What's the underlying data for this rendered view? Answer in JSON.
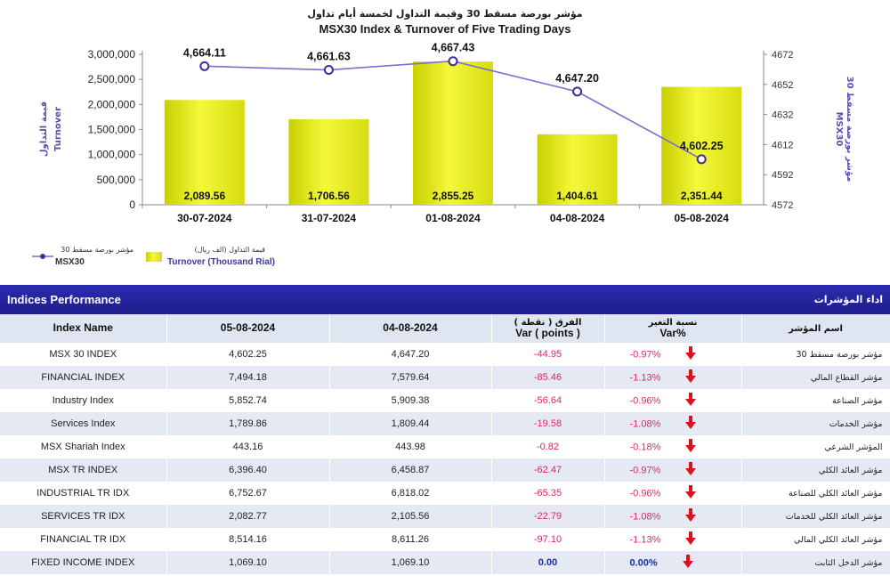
{
  "chart_data": {
    "type": "bar",
    "title_ar": "مؤشر بورصة مسقط 30 وقيمة التداول لخمسة أيام تداول",
    "title": "MSX30 Index & Turnover of Five Trading Days",
    "categories": [
      "30-07-2024",
      "31-07-2024",
      "01-08-2024",
      "04-08-2024",
      "05-08-2024"
    ],
    "series": [
      {
        "name": "Turnover (Thousand Rial)",
        "name_ar": "قيمة التداول (الف ريال)",
        "type": "bar",
        "axis": "left",
        "values": [
          2089.56,
          1706.56,
          2855.25,
          1404.61,
          2351.44
        ],
        "labels": [
          "2,089.56",
          "1,706.56",
          "2,855.25",
          "1,404.61",
          "2,351.44"
        ]
      },
      {
        "name": "MSX30",
        "name_ar": "مؤشر بورصة مسقط 30",
        "type": "line",
        "axis": "right",
        "values": [
          4664.11,
          4661.63,
          4667.43,
          4647.2,
          4602.25
        ],
        "labels": [
          "4,664.11",
          "4,661.63",
          "4,667.43",
          "4,647.20",
          "4,602.25"
        ]
      }
    ],
    "y_left": {
      "label": "Turnover",
      "label_ar": "قيمة التداول",
      "range": [
        0,
        3000000
      ],
      "ticks": [
        0,
        500000,
        1000000,
        1500000,
        2000000,
        2500000,
        3000000
      ],
      "tick_labels": [
        "0",
        "500,000",
        "1,000,000",
        "1,500,000",
        "2,000,000",
        "2,500,000",
        "3,000,000"
      ]
    },
    "y_right": {
      "label": "MSX30",
      "label_ar": "مؤشر بورصة مسقط 30",
      "range": [
        4572,
        4672
      ],
      "ticks": [
        4572,
        4592,
        4612,
        4632,
        4652,
        4672
      ]
    },
    "legend": "bottom-left",
    "colors": {
      "bar": "#e6ec1a",
      "line": "#7b6fd0",
      "marker": "#3b2fa0"
    }
  },
  "table": {
    "title": "Indices Performance",
    "title_ar": "اداء المؤشرات",
    "headers": {
      "name": "Index Name",
      "d1": "05-08-2024",
      "d2": "04-08-2024",
      "var_ar": "الفرق ( نقطة )",
      "var": "Var ( points )",
      "pct_ar": "نسبة التغير",
      "pct": "Var%",
      "name_ar": "اسم المؤشر"
    },
    "rows": [
      {
        "name": "MSX 30 INDEX",
        "d1": "4,602.25",
        "d2": "4,647.20",
        "var": "-44.95",
        "pct": "-0.97%",
        "ar": "مؤشر بورصة مسقط 30",
        "dir": "down"
      },
      {
        "name": "FINANCIAL INDEX",
        "d1": "7,494.18",
        "d2": "7,579.64",
        "var": "-85.46",
        "pct": "-1.13%",
        "ar": "مؤشر القطاع المالي",
        "dir": "down"
      },
      {
        "name": "Industry Index",
        "d1": "5,852.74",
        "d2": "5,909.38",
        "var": "-56.64",
        "pct": "-0.96%",
        "ar": "مؤشر الصناعة",
        "dir": "down"
      },
      {
        "name": "Services Index",
        "d1": "1,789.86",
        "d2": "1,809.44",
        "var": "-19.58",
        "pct": "-1.08%",
        "ar": "مؤشر الخدمات",
        "dir": "down"
      },
      {
        "name": "MSX Shariah Index",
        "d1": "443.16",
        "d2": "443.98",
        "var": "-0.82",
        "pct": "-0.18%",
        "ar": "المؤشر الشرعي",
        "dir": "down"
      },
      {
        "name": "MSX TR INDEX",
        "d1": "6,396.40",
        "d2": "6,458.87",
        "var": "-62.47",
        "pct": "-0.97%",
        "ar": "مؤشر العائد الكلي",
        "dir": "down"
      },
      {
        "name": "INDUSTRIAL TR IDX",
        "d1": "6,752.67",
        "d2": "6,818.02",
        "var": "-65.35",
        "pct": "-0.96%",
        "ar": "مؤشر العائد الكلي للصناعة",
        "dir": "down"
      },
      {
        "name": "SERVICES TR IDX",
        "d1": "2,082.77",
        "d2": "2,105.56",
        "var": "-22.79",
        "pct": "-1.08%",
        "ar": "مؤشر العائد الكلي للخدمات",
        "dir": "down"
      },
      {
        "name": "FINANCIAL TR IDX",
        "d1": "8,514.16",
        "d2": "8,611.26",
        "var": "-97.10",
        "pct": "-1.13%",
        "ar": "مؤشر العائد الكلي المالي",
        "dir": "down"
      },
      {
        "name": "FIXED INCOME INDEX",
        "d1": "1,069.10",
        "d2": "1,069.10",
        "var": "0.00",
        "pct": "0.00%",
        "ar": "مؤشر الدخل الثابت",
        "dir": "down"
      }
    ]
  }
}
